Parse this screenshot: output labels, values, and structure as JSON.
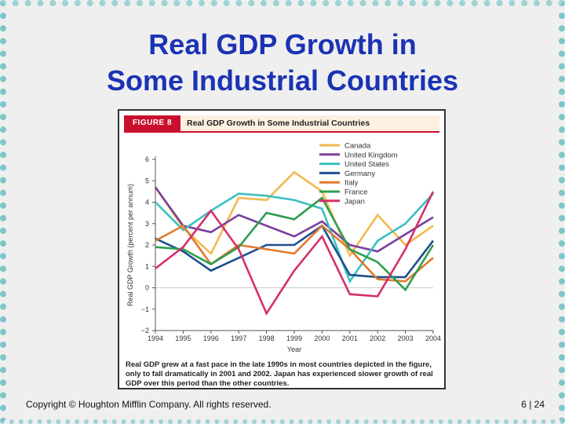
{
  "slide": {
    "title_line1": "Real GDP Growth in",
    "title_line2": "Some Industrial Countries",
    "copyright": "Copyright © Houghton Mifflin Company.  All rights reserved.",
    "page": "6 | 24"
  },
  "figure": {
    "badge": "FIGURE 8",
    "title": "Real GDP Growth in Some Industrial Countries",
    "caption": "Real GDP grew at a fast pace in the late 1990s in most countries depicted in the figure, only to fall dramatically in 2001 and 2002. Japan has experienced slower growth of real GDP over this period than the other countries."
  },
  "chart_data": {
    "type": "line",
    "title": "Real GDP Growth in Some Industrial Countries",
    "xlabel": "Year",
    "ylabel": "Real GDP Growth (percent per annum)",
    "ylim": [
      -2,
      6
    ],
    "yticks": [
      6,
      5,
      4,
      3,
      2,
      1,
      0,
      -1,
      -2
    ],
    "x": [
      "1994",
      "1995",
      "1996",
      "1997",
      "1998",
      "1999",
      "2000",
      "2001",
      "2002",
      "2003",
      "2004"
    ],
    "series": [
      {
        "name": "Canada",
        "color": "#f2b94e",
        "values": [
          4.7,
          2.8,
          1.6,
          4.2,
          4.1,
          5.4,
          4.5,
          1.5,
          3.4,
          2.0,
          2.9
        ]
      },
      {
        "name": "United Kingdom",
        "color": "#7b3f9e",
        "values": [
          4.7,
          2.9,
          2.6,
          3.4,
          2.9,
          2.4,
          3.1,
          2.0,
          1.7,
          2.5,
          3.3
        ]
      },
      {
        "name": "United States",
        "color": "#3cc0c0",
        "values": [
          4.0,
          2.7,
          3.6,
          4.4,
          4.3,
          4.1,
          3.7,
          0.3,
          2.2,
          3.0,
          4.4
        ]
      },
      {
        "name": "Germany",
        "color": "#1f4f8f",
        "values": [
          2.3,
          1.7,
          0.8,
          1.4,
          2.0,
          2.0,
          2.9,
          0.6,
          0.5,
          0.5,
          2.2
        ]
      },
      {
        "name": "Italy",
        "color": "#e07a2e",
        "values": [
          2.2,
          2.9,
          1.1,
          2.0,
          1.8,
          1.6,
          2.9,
          1.8,
          0.4,
          0.3,
          1.4
        ]
      },
      {
        "name": "France",
        "color": "#2e9e4e",
        "values": [
          1.9,
          1.8,
          1.1,
          1.9,
          3.5,
          3.2,
          4.2,
          1.8,
          1.2,
          -0.1,
          2.0
        ]
      },
      {
        "name": "Japan",
        "color": "#d62f6b",
        "values": [
          0.9,
          1.9,
          3.6,
          1.8,
          -1.2,
          0.8,
          2.4,
          -0.3,
          -0.4,
          1.8,
          4.5
        ]
      }
    ]
  }
}
